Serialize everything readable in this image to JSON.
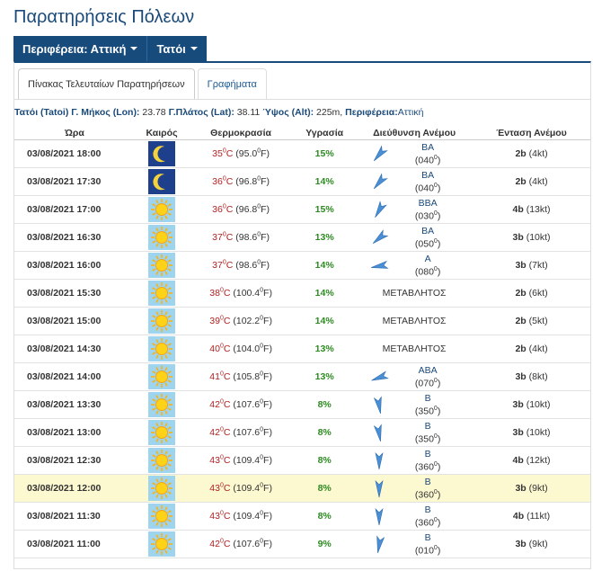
{
  "page": {
    "title": "Παρατηρήσεις Πόλεων"
  },
  "nav": {
    "region_label": "Περιφέρεια: Αττική",
    "station_label": "Τατόι"
  },
  "tabs": [
    "Πίνακας Τελευταίων Παρατηρήσεων",
    "Γραφήματα"
  ],
  "station": {
    "name": "Τατόι (Tatoi)",
    "lon_label": "Γ. Μήκος (Lon):",
    "lon": "23.78",
    "lat_label": "Γ.Πλάτος (Lat):",
    "lat": "38.11",
    "alt_label": "Ύψος (Alt):",
    "alt": "225m,",
    "region_label": "Περιφέρεια:",
    "region": "Αττική"
  },
  "columns": [
    "Ώρα",
    "Καιρός",
    "Θερμοκρασία",
    "Υγρασία",
    "Διεύθυνση Ανέμου",
    "Ένταση Ανέμου"
  ],
  "rows": [
    {
      "time": "03/08/2021 18:00",
      "sky": "moon-icon",
      "temp_c": "35",
      "temp_f": "(95.0",
      "hum": "15%",
      "dir": "ΒΑ",
      "deg": "(040",
      "bft": "2b",
      "kt": "(4kt)",
      "calm": ""
    },
    {
      "time": "03/08/2021 17:30",
      "sky": "moon-icon",
      "temp_c": "36",
      "temp_f": "(96.8",
      "hum": "14%",
      "dir": "ΒΑ",
      "deg": "(040",
      "bft": "2b",
      "kt": "(4kt)",
      "calm": ""
    },
    {
      "time": "03/08/2021 17:00",
      "sky": "sun-icon",
      "temp_c": "36",
      "temp_f": "(96.8",
      "hum": "15%",
      "dir": "ΒΒΑ",
      "deg": "(030",
      "bft": "4b",
      "kt": "(13kt)",
      "calm": ""
    },
    {
      "time": "03/08/2021 16:30",
      "sky": "sun-icon",
      "temp_c": "37",
      "temp_f": "(98.6",
      "hum": "13%",
      "dir": "ΒΑ",
      "deg": "(050",
      "bft": "3b",
      "kt": "(10kt)",
      "calm": ""
    },
    {
      "time": "03/08/2021 16:00",
      "sky": "sun-icon",
      "temp_c": "37",
      "temp_f": "(98.6",
      "hum": "14%",
      "dir": "Α",
      "deg": "(080",
      "bft": "3b",
      "kt": "(7kt)",
      "calm": ""
    },
    {
      "time": "03/08/2021 15:30",
      "sky": "sun-icon",
      "temp_c": "38",
      "temp_f": "(100.4",
      "hum": "14%",
      "dir": "",
      "deg": "",
      "bft": "2b",
      "kt": "(6kt)",
      "calm": "ΜΕΤΑΒΛΗΤΟΣ"
    },
    {
      "time": "03/08/2021 15:00",
      "sky": "sun-icon",
      "temp_c": "39",
      "temp_f": "(102.2",
      "hum": "14%",
      "dir": "",
      "deg": "",
      "bft": "2b",
      "kt": "(5kt)",
      "calm": "ΜΕΤΑΒΛΗΤΟΣ"
    },
    {
      "time": "03/08/2021 14:30",
      "sky": "sun-icon",
      "temp_c": "40",
      "temp_f": "(104.0",
      "hum": "13%",
      "dir": "",
      "deg": "",
      "bft": "2b",
      "kt": "(4kt)",
      "calm": "ΜΕΤΑΒΛΗΤΟΣ"
    },
    {
      "time": "03/08/2021 14:00",
      "sky": "sun-icon",
      "temp_c": "41",
      "temp_f": "(105.8",
      "hum": "13%",
      "dir": "ΑΒΑ",
      "deg": "(070",
      "bft": "3b",
      "kt": "(8kt)",
      "calm": ""
    },
    {
      "time": "03/08/2021 13:30",
      "sky": "sun-icon",
      "temp_c": "42",
      "temp_f": "(107.6",
      "hum": "8%",
      "dir": "Β",
      "deg": "(350",
      "bft": "3b",
      "kt": "(10kt)",
      "calm": ""
    },
    {
      "time": "03/08/2021 13:00",
      "sky": "sun-icon",
      "temp_c": "42",
      "temp_f": "(107.6",
      "hum": "8%",
      "dir": "Β",
      "deg": "(350",
      "bft": "3b",
      "kt": "(10kt)",
      "calm": ""
    },
    {
      "time": "03/08/2021 12:30",
      "sky": "sun-icon",
      "temp_c": "43",
      "temp_f": "(109.4",
      "hum": "8%",
      "dir": "Β",
      "deg": "(360",
      "bft": "4b",
      "kt": "(12kt)",
      "calm": ""
    },
    {
      "time": "03/08/2021 12:00",
      "sky": "sun-icon",
      "temp_c": "43",
      "temp_f": "(109.4",
      "hum": "8%",
      "dir": "Β",
      "deg": "(360",
      "bft": "3b",
      "kt": "(9kt)",
      "calm": ""
    },
    {
      "time": "03/08/2021 11:30",
      "sky": "sun-icon",
      "temp_c": "43",
      "temp_f": "(109.4",
      "hum": "8%",
      "dir": "Β",
      "deg": "(360",
      "bft": "4b",
      "kt": "(11kt)",
      "calm": ""
    },
    {
      "time": "03/08/2021 11:00",
      "sky": "sun-icon",
      "temp_c": "42",
      "temp_f": "(107.6",
      "hum": "9%",
      "dir": "Β",
      "deg": "(010",
      "bft": "3b",
      "kt": "(9kt)",
      "calm": ""
    }
  ],
  "units": {
    "deg_sup": "0",
    "deg_close": ")",
    "c": "C",
    "f": "F)"
  },
  "highlighted_row_index": 12,
  "colors": {
    "nav_bg": "#174b7c",
    "highlight": "#fcf8d0",
    "temp": "#b22222",
    "humidity": "#2e8b22"
  }
}
